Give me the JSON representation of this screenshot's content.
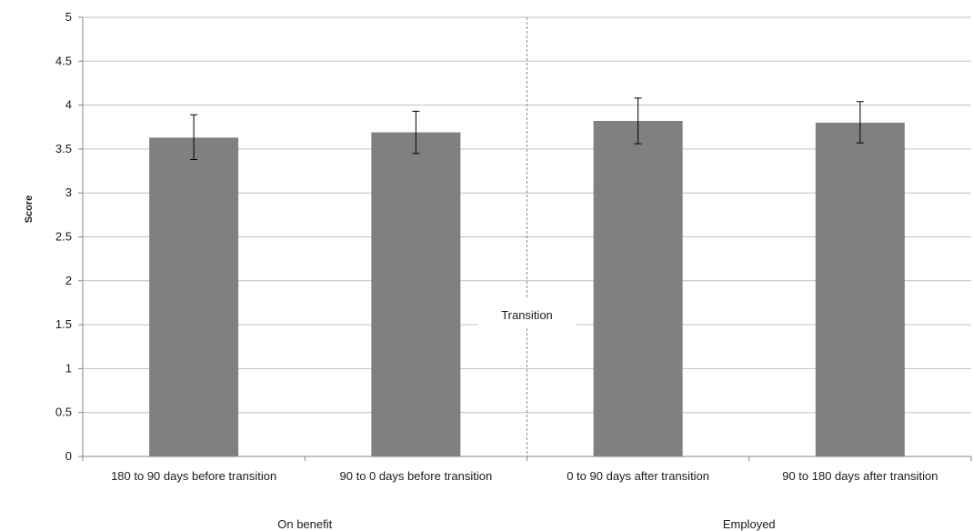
{
  "chart_data": {
    "type": "bar",
    "title": "",
    "xlabel": "",
    "ylabel": "Score",
    "ylim": [
      0,
      5
    ],
    "yticks": [
      "0",
      "0.5",
      "1",
      "1.5",
      "2",
      "2.5",
      "3",
      "3.5",
      "4",
      "4.5",
      "5"
    ],
    "grid": true,
    "legend": "none",
    "categories": [
      "180 to 90 days before transition",
      "90 to 0 days before transition",
      "0 to 90 days after transition",
      "90 to 180 days after transition"
    ],
    "values": [
      3.63,
      3.69,
      3.82,
      3.8
    ],
    "error_low": [
      3.38,
      3.45,
      3.56,
      3.57
    ],
    "error_high": [
      3.89,
      3.93,
      4.08,
      4.04
    ],
    "groups": [
      {
        "label": "On benefit",
        "categories": [
          0,
          1
        ]
      },
      {
        "label": "Employed",
        "categories": [
          2,
          3
        ]
      }
    ],
    "annotation": {
      "label": "Transition",
      "between_categories": [
        1,
        2
      ],
      "style": "dashed-line"
    },
    "colors": {
      "bar": "#808080",
      "grid": "#bfbfbf",
      "axis": "#868686",
      "divider": "#8c8c8c",
      "error": "#000000"
    }
  }
}
